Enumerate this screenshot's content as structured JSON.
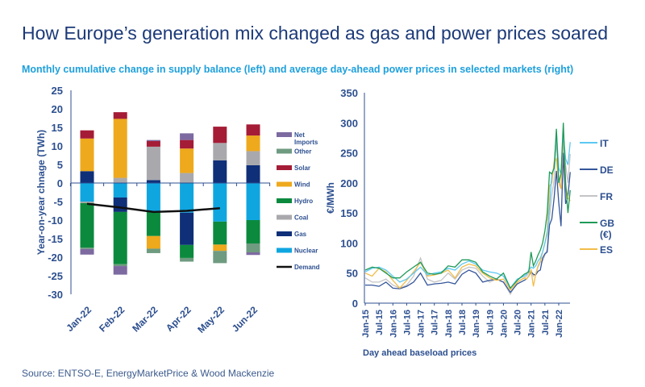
{
  "title": "How Europe’s generation mix changed as gas and power prices soared",
  "subtitle": "Monthly cumulative change in supply balance (left) and average day-ahead power prices in selected markets (right)",
  "source": "Source: ENTSO-E, EnergyMarketPrice & Wood Mackenzie",
  "chart_data": [
    {
      "type": "bar",
      "stacked": true,
      "ylabel": "Year-on-year chnage (TWh)",
      "ylim": [
        -30,
        25
      ],
      "yticks": [
        25,
        20,
        15,
        10,
        5,
        0,
        -5,
        -10,
        -15,
        -20,
        -25,
        -30
      ],
      "categories": [
        "Jan-22",
        "Feb-22",
        "Mar-22",
        "Apr-22",
        "May-22",
        "Jun-22"
      ],
      "legend_position": "right",
      "series": [
        {
          "name": "Nuclear",
          "color": "#0fa6e0",
          "values": [
            -5,
            -3.9,
            -7.8,
            -8,
            -10.4,
            -10
          ]
        },
        {
          "name": "Gas",
          "color": "#0f2f78",
          "values": [
            3.2,
            -3.9,
            0.8,
            -8.7,
            6.1,
            4.8
          ]
        },
        {
          "name": "Coal",
          "color": "#a9a9ad",
          "values": [
            -0.4,
            1.4,
            9.0,
            2.7,
            4.7,
            3.8
          ]
        },
        {
          "name": "Hydro",
          "color": "#0b8a3e",
          "values": [
            -12.0,
            -14.1,
            -6.5,
            -3.5,
            -6.2,
            -6.3
          ]
        },
        {
          "name": "Wind",
          "color": "#eea91c",
          "values": [
            8.8,
            15.9,
            -3.4,
            6.6,
            -1.7,
            4.2
          ]
        },
        {
          "name": "Solar",
          "color": "#a51c36",
          "values": [
            2.2,
            1.8,
            1.5,
            2.3,
            4.4,
            3.0
          ]
        },
        {
          "name": "Other",
          "color": "#6f9b80",
          "values": [
            -0.4,
            -0.5,
            -1.2,
            -1.0,
            -3.3,
            -2.4
          ]
        },
        {
          "name": "Net Imports",
          "color": "#7d6aa0",
          "values": [
            -1.5,
            -2.3,
            0.3,
            1.8,
            0,
            -0.7
          ]
        }
      ],
      "line": {
        "name": "Demand",
        "color": "#111111",
        "values": [
          -5.6,
          -6.6,
          -7.8,
          -7.5,
          -6.8,
          null
        ]
      },
      "legend_order": [
        "Net Imports",
        "Other",
        "Solar",
        "Wind",
        "Hydro",
        "Coal",
        "Gas",
        "Nuclear",
        "Demand"
      ]
    },
    {
      "type": "line",
      "ylabel": "€/MWh",
      "xlabel": "Day ahead baseload  prices",
      "ylim": [
        0,
        350
      ],
      "yticks": [
        0,
        50,
        100,
        150,
        200,
        250,
        300,
        350
      ],
      "xticks": [
        "Jan-15",
        "Jul-15",
        "Jan-16",
        "Jul-16",
        "Jan-17",
        "Jul-17",
        "Jan-18",
        "Jul-18",
        "Jan-19",
        "Jul-19",
        "Jan-20",
        "Jul-20",
        "Jan-21",
        "Jul-21",
        "Jan-22"
      ],
      "legend_position": "right",
      "x": [
        "Jan-15",
        "Apr-15",
        "Jul-15",
        "Oct-15",
        "Jan-16",
        "Apr-16",
        "Jul-16",
        "Oct-16",
        "Jan-17",
        "Apr-17",
        "Jul-17",
        "Oct-17",
        "Jan-18",
        "Apr-18",
        "Jul-18",
        "Oct-18",
        "Jan-19",
        "Apr-19",
        "Jul-19",
        "Oct-19",
        "Jan-20",
        "Apr-20",
        "Jul-20",
        "Oct-20",
        "Nov-20",
        "Dec-20",
        "Jan-21",
        "Feb-21",
        "Mar-21",
        "Apr-21",
        "May-21",
        "Jun-21",
        "Jul-21",
        "Aug-21",
        "Sep-21",
        "Oct-21",
        "Nov-21",
        "Dec-21",
        "Jan-22",
        "Feb-22",
        "Mar-22",
        "Apr-22",
        "May-22",
        "Jun-22"
      ],
      "series": [
        {
          "name": "FR",
          "color": "#c4c4c6",
          "values": [
            42,
            35,
            35,
            40,
            30,
            25,
            30,
            45,
            75,
            40,
            35,
            38,
            50,
            40,
            55,
            60,
            58,
            45,
            35,
            40,
            35,
            15,
            35,
            42,
            45,
            50,
            55,
            45,
            48,
            60,
            68,
            70,
            80,
            90,
            140,
            180,
            205,
            270,
            210,
            190,
            270,
            230,
            200,
            248
          ]
        },
        {
          "name": "DE",
          "color": "#34569a",
          "values": [
            30,
            30,
            28,
            35,
            25,
            24,
            28,
            35,
            50,
            30,
            32,
            33,
            35,
            32,
            48,
            55,
            50,
            35,
            38,
            40,
            35,
            18,
            32,
            38,
            40,
            45,
            52,
            48,
            47,
            53,
            55,
            75,
            82,
            85,
            130,
            140,
            175,
            220,
            168,
            128,
            250,
            165,
            178,
            218
          ]
        },
        {
          "name": "ES",
          "color": "#f2bd4a",
          "values": [
            50,
            45,
            58,
            52,
            38,
            25,
            38,
            52,
            68,
            45,
            47,
            50,
            55,
            42,
            60,
            65,
            62,
            50,
            42,
            38,
            40,
            22,
            35,
            42,
            40,
            45,
            55,
            28,
            48,
            62,
            70,
            85,
            100,
            120,
            195,
            200,
            235,
            240,
            200,
            190,
            285,
            195,
            175,
            170
          ]
        },
        {
          "name": "IT",
          "color": "#5cc8f2",
          "values": [
            52,
            58,
            60,
            55,
            45,
            35,
            40,
            50,
            60,
            47,
            50,
            52,
            58,
            55,
            65,
            70,
            65,
            55,
            52,
            50,
            45,
            25,
            40,
            45,
            48,
            55,
            60,
            58,
            62,
            70,
            75,
            85,
            100,
            115,
            160,
            215,
            225,
            285,
            225,
            215,
            280,
            240,
            230,
            268
          ]
        },
        {
          "name": "GB (€)",
          "label_lines": [
            "GB",
            "(€)"
          ],
          "color": "#1f9a58",
          "values": [
            55,
            60,
            58,
            50,
            42,
            42,
            52,
            60,
            68,
            50,
            48,
            50,
            62,
            60,
            72,
            72,
            68,
            52,
            45,
            40,
            50,
            25,
            38,
            48,
            50,
            52,
            85,
            62,
            70,
            80,
            88,
            100,
            120,
            150,
            218,
            215,
            225,
            290,
            200,
            215,
            300,
            200,
            150,
            188
          ]
        }
      ],
      "legend_order": [
        "IT",
        "DE",
        "FR",
        "GB (€)",
        "ES"
      ]
    }
  ]
}
